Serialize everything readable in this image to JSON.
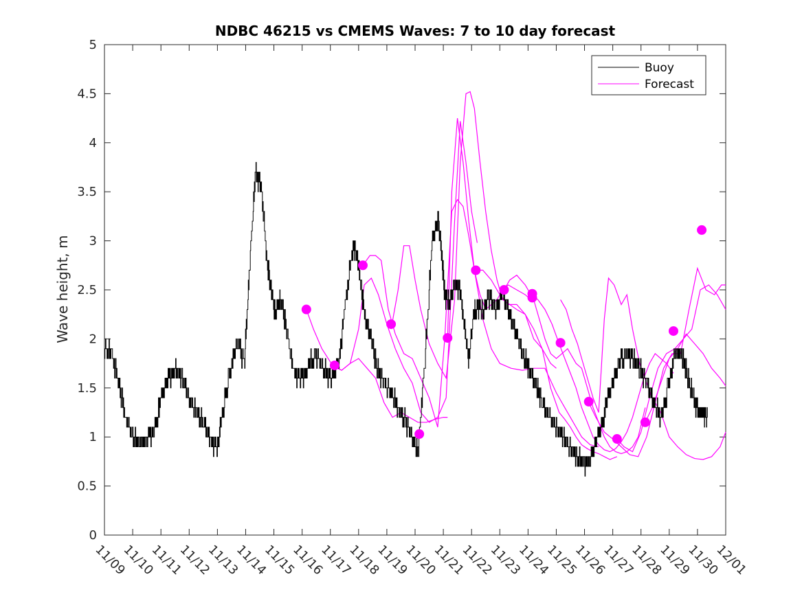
{
  "chart_data": {
    "type": "line",
    "title": "NDBC 46215 vs CMEMS Waves: 7 to 10 day forecast",
    "xlabel": "",
    "ylabel": "Wave height, m",
    "xlim": [
      0,
      22
    ],
    "ylim": [
      0,
      5
    ],
    "x_ticks": [
      0,
      1,
      2,
      3,
      4,
      5,
      6,
      7,
      8,
      9,
      10,
      11,
      12,
      13,
      14,
      15,
      16,
      17,
      18,
      19,
      20,
      21,
      22
    ],
    "x_tick_labels": [
      "11/09",
      "11/10",
      "11/11",
      "11/12",
      "11/13",
      "11/14",
      "11/15",
      "11/16",
      "11/17",
      "11/18",
      "11/19",
      "11/20",
      "11/21",
      "11/22",
      "11/23",
      "11/24",
      "11/25",
      "11/26",
      "11/27",
      "11/28",
      "11/29",
      "11/30",
      "12/01"
    ],
    "y_ticks": [
      0,
      0.5,
      1,
      1.5,
      2,
      2.5,
      3,
      3.5,
      4,
      4.5,
      5
    ],
    "y_tick_labels": [
      "0",
      "0.5",
      "1",
      "1.5",
      "2",
      "2.5",
      "3",
      "3.5",
      "4",
      "4.5",
      "5"
    ],
    "legend": {
      "position": "top-right",
      "entries": [
        "Buoy",
        "Forecast"
      ]
    },
    "colors": {
      "buoy": "#000000",
      "forecast": "#ff00ff"
    },
    "buoy": {
      "name": "Buoy",
      "x": [
        0,
        0.25,
        0.5,
        0.75,
        1.0,
        1.25,
        1.5,
        1.75,
        2.0,
        2.25,
        2.5,
        2.75,
        3.0,
        3.25,
        3.5,
        3.75,
        4.0,
        4.15,
        4.4,
        4.7,
        4.95,
        5.15,
        5.35,
        5.55,
        5.75,
        5.9,
        6.05,
        6.25,
        6.45,
        6.7,
        6.95,
        7.2,
        7.45,
        7.75,
        8.0,
        8.3,
        8.5,
        8.8,
        8.95,
        9.1,
        9.25,
        9.45,
        9.65,
        9.9,
        10.15,
        10.4,
        10.65,
        10.9,
        11.1,
        11.35,
        11.6,
        11.8,
        11.95,
        12.05,
        12.2,
        12.4,
        12.6,
        12.75,
        12.9,
        13.05,
        13.2,
        13.4,
        13.6,
        13.85,
        14.1,
        14.35,
        14.6,
        14.85,
        15.05,
        15.3,
        15.5,
        15.75,
        16.0,
        16.25,
        16.5,
        16.75,
        17.0,
        17.2,
        17.45,
        17.7,
        17.95,
        18.2,
        18.45,
        18.7,
        18.95,
        19.2,
        19.45,
        19.7,
        19.95,
        20.2,
        20.45,
        20.65,
        20.85,
        21.05,
        21.2,
        21.35
      ],
      "y": [
        1.9,
        1.85,
        1.55,
        1.2,
        1.0,
        0.95,
        0.95,
        1.1,
        1.35,
        1.6,
        1.7,
        1.6,
        1.4,
        1.25,
        1.15,
        0.95,
        0.9,
        1.2,
        1.6,
        2.0,
        1.75,
        2.8,
        3.7,
        3.55,
        2.8,
        2.5,
        2.25,
        2.4,
        2.1,
        1.65,
        1.6,
        1.7,
        1.85,
        1.7,
        1.6,
        1.75,
        2.3,
        2.95,
        2.85,
        2.5,
        2.2,
        2.0,
        1.7,
        1.55,
        1.45,
        1.3,
        1.15,
        1.0,
        0.85,
        1.8,
        3.0,
        3.25,
        2.85,
        2.45,
        2.4,
        2.55,
        2.5,
        2.1,
        1.8,
        2.2,
        2.35,
        2.3,
        2.45,
        2.3,
        2.45,
        2.25,
        2.05,
        1.8,
        1.7,
        1.5,
        1.35,
        1.2,
        1.1,
        1.0,
        0.88,
        0.8,
        0.73,
        0.75,
        0.95,
        1.25,
        1.55,
        1.75,
        1.85,
        1.8,
        1.7,
        1.55,
        1.35,
        1.2,
        1.5,
        1.85,
        1.85,
        1.6,
        1.4,
        1.25,
        1.25,
        1.2
      ]
    },
    "forecast_series": [
      {
        "x": [
          7.15,
          7.4,
          7.7,
          8.1,
          8.4,
          8.7,
          9.0,
          9.3,
          9.6,
          9.9,
          10.2,
          10.5,
          10.8,
          11.1,
          11.4,
          11.7,
          12.0,
          12.15
        ],
        "y": [
          2.3,
          2.1,
          1.9,
          1.72,
          1.68,
          1.75,
          1.8,
          1.7,
          1.6,
          1.35,
          1.2,
          1.25,
          1.2,
          1.15,
          1.15,
          1.18,
          1.2,
          1.2
        ]
      },
      {
        "x": [
          8.1,
          8.4,
          8.7,
          9.0,
          9.2,
          9.45,
          9.7,
          10.0,
          10.3,
          10.6,
          10.9,
          11.2,
          11.5,
          11.8,
          12.1,
          12.4,
          12.6,
          12.8,
          13.0,
          13.2
        ],
        "y": [
          1.72,
          1.68,
          1.75,
          2.1,
          2.55,
          2.62,
          2.45,
          2.15,
          1.9,
          1.7,
          1.55,
          1.25,
          1.15,
          1.2,
          1.4,
          3.2,
          4.22,
          3.8,
          3.3,
          2.98
        ]
      },
      {
        "x": [
          9.15,
          9.4,
          9.6,
          9.8,
          10.05,
          10.3,
          10.6,
          10.9,
          11.2,
          11.5,
          11.8,
          12.05,
          12.3,
          12.5,
          12.7,
          12.9,
          13.1,
          13.3,
          13.5,
          13.7,
          13.9,
          14.1,
          14.3,
          14.6,
          14.9,
          15.1
        ],
        "y": [
          2.75,
          2.85,
          2.85,
          2.8,
          2.3,
          2.05,
          1.85,
          1.8,
          1.6,
          1.4,
          1.1,
          2.0,
          3.3,
          3.42,
          3.35,
          3.05,
          2.7,
          2.45,
          2.3,
          2.35,
          2.4,
          2.5,
          2.55,
          2.5,
          2.45,
          2.4
        ]
      },
      {
        "x": [
          10.15,
          10.4,
          10.6,
          10.8,
          11.0,
          11.2,
          11.5,
          11.8,
          12.1,
          12.4,
          12.6,
          12.8,
          12.95,
          13.1,
          13.3,
          13.5,
          13.7,
          13.9,
          14.1,
          14.35,
          14.6,
          14.9,
          15.2,
          15.5,
          15.8,
          16.0
        ],
        "y": [
          2.1,
          2.5,
          2.95,
          2.95,
          2.6,
          2.3,
          1.95,
          1.75,
          1.6,
          2.4,
          3.8,
          4.5,
          4.52,
          4.35,
          3.8,
          3.3,
          2.9,
          2.6,
          2.4,
          2.35,
          2.3,
          2.25,
          2.0,
          1.9,
          1.75,
          1.7
        ]
      },
      {
        "x": [
          12.15,
          12.3,
          12.5,
          12.7,
          12.9,
          13.1,
          13.4,
          13.7,
          14.0,
          14.4,
          14.8,
          15.2,
          15.6,
          16.0,
          16.3,
          16.6,
          16.9,
          17.2,
          17.5
        ],
        "y": [
          2.0,
          3.5,
          4.25,
          3.8,
          3.2,
          2.7,
          2.2,
          1.9,
          1.75,
          1.7,
          1.68,
          1.7,
          1.7,
          1.45,
          1.3,
          1.15,
          1.0,
          0.92,
          0.9
        ]
      },
      {
        "x": [
          13.15,
          13.4,
          13.7,
          14.0,
          14.3,
          14.6,
          14.9,
          15.2,
          15.5,
          15.8,
          16.1,
          16.3,
          16.5,
          16.7,
          16.9,
          17.1,
          17.3,
          17.5,
          17.7,
          17.9,
          18.15
        ],
        "y": [
          2.7,
          2.7,
          2.6,
          2.45,
          2.35,
          2.35,
          2.25,
          2.1,
          1.9,
          1.5,
          1.25,
          1.18,
          1.1,
          1.0,
          0.92,
          0.88,
          0.85,
          0.83,
          0.8,
          0.77,
          0.8
        ]
      },
      {
        "x": [
          14.15,
          14.35,
          14.6,
          14.9,
          15.2,
          15.4,
          15.6,
          15.8,
          16.0,
          16.2,
          16.4,
          16.5,
          16.7,
          16.9,
          17.1,
          17.3,
          17.5,
          17.7,
          17.9,
          18.1,
          18.3,
          18.5,
          18.7,
          18.9,
          19.15
        ],
        "y": [
          2.5,
          2.6,
          2.65,
          2.55,
          2.4,
          2.2,
          2.0,
          1.85,
          1.8,
          1.85,
          1.9,
          1.85,
          1.75,
          1.7,
          1.5,
          1.3,
          1.15,
          1.0,
          0.9,
          0.85,
          0.83,
          0.85,
          0.9,
          1.0,
          1.3
        ]
      },
      {
        "x": [
          15.15,
          15.35,
          15.6,
          15.85,
          16.1,
          16.3,
          16.5,
          16.7,
          16.9,
          17.1,
          17.3,
          17.5,
          17.7,
          17.9,
          18.1,
          18.3,
          18.5,
          18.7,
          18.9,
          19.1,
          19.3,
          19.5,
          19.7,
          19.9,
          20.15
        ],
        "y": [
          2.45,
          2.4,
          2.3,
          2.15,
          1.95,
          1.8,
          1.65,
          1.5,
          1.3,
          1.15,
          1.0,
          0.92,
          0.87,
          0.85,
          0.88,
          0.95,
          1.05,
          1.2,
          1.4,
          1.6,
          1.75,
          1.85,
          1.8,
          1.75,
          1.65
        ]
      },
      {
        "x": [
          16.15,
          16.35,
          16.55,
          16.75,
          16.9,
          17.1,
          17.3,
          17.5,
          17.7,
          17.85,
          18.05,
          18.3,
          18.5,
          18.7,
          18.95,
          19.2,
          19.4,
          19.7,
          20.0,
          20.3,
          20.6,
          20.9,
          21.2,
          21.5,
          21.8,
          22.0
        ],
        "y": [
          2.4,
          2.3,
          2.1,
          1.95,
          1.8,
          1.6,
          1.4,
          1.25,
          2.2,
          2.62,
          2.55,
          2.35,
          2.45,
          2.1,
          1.75,
          1.55,
          1.4,
          1.25,
          1.0,
          0.9,
          0.82,
          0.78,
          0.77,
          0.8,
          0.9,
          1.05
        ]
      },
      {
        "x": [
          17.15,
          17.4,
          17.7,
          18.0,
          18.3,
          18.6,
          18.9,
          19.2,
          19.5,
          19.8,
          20.1,
          20.4,
          20.7,
          21.0,
          21.3,
          21.6,
          21.85,
          22.0
        ],
        "y": [
          1.35,
          1.2,
          1.05,
          0.98,
          0.9,
          0.82,
          0.8,
          1.0,
          1.35,
          1.7,
          1.85,
          1.85,
          2.3,
          2.72,
          2.5,
          2.45,
          2.55,
          2.55
        ]
      },
      {
        "x": [
          18.15,
          18.4,
          18.7,
          19.0,
          19.3,
          19.6,
          19.9,
          20.2,
          20.5,
          20.8,
          21.1,
          21.4,
          21.7,
          22.0
        ],
        "y": [
          0.98,
          0.9,
          0.85,
          1.05,
          1.4,
          1.7,
          1.85,
          1.9,
          2.0,
          2.1,
          2.5,
          2.55,
          2.45,
          2.3
        ]
      },
      {
        "x": [
          19.15,
          19.4,
          19.7,
          20.0,
          20.3,
          20.6,
          20.9,
          21.2,
          21.5,
          21.8,
          22.0
        ],
        "y": [
          1.15,
          1.3,
          1.55,
          1.8,
          1.9,
          2.05,
          1.95,
          1.85,
          1.7,
          1.6,
          1.52
        ]
      }
    ],
    "forecast_start_points": {
      "x": [
        7.15,
        8.15,
        9.15,
        10.15,
        11.15,
        12.15,
        13.15,
        14.15,
        15.15,
        15.15,
        16.15,
        17.15,
        18.15,
        19.15,
        20.15,
        21.15
      ],
      "y": [
        2.3,
        1.73,
        2.75,
        2.15,
        1.03,
        2.01,
        2.7,
        2.5,
        2.46,
        2.42,
        1.96,
        1.36,
        0.98,
        1.15,
        2.08,
        3.11
      ]
    }
  }
}
